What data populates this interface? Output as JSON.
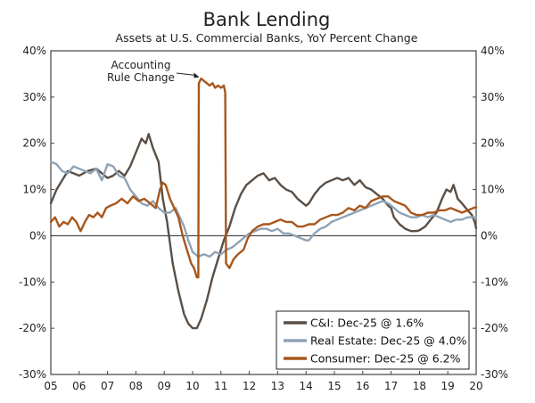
{
  "chart_data": {
    "type": "line",
    "title": "Bank Lending",
    "subtitle": "Assets at U.S. Commercial Banks, YoY Percent Change",
    "xlabel": "",
    "ylabel": "",
    "x_ticks": [
      "05",
      "06",
      "07",
      "08",
      "09",
      "10",
      "11",
      "12",
      "13",
      "14",
      "15",
      "16",
      "17",
      "18",
      "19",
      "20"
    ],
    "y_ticks_left": [
      "40%",
      "30%",
      "20%",
      "10%",
      "0%",
      "-10%",
      "-20%",
      "-30%"
    ],
    "y_ticks_right": [
      "40%",
      "30%",
      "20%",
      "10%",
      "0%",
      "-10%",
      "-20%",
      "-30%"
    ],
    "ylim": [
      -30,
      40
    ],
    "xlim": [
      2005.0,
      2020.0
    ],
    "grid": false,
    "legend_position": "bottom-right",
    "annotation": {
      "lines": [
        "Accounting",
        "Rule Change"
      ],
      "x": 2010.3,
      "y": 34.5
    },
    "colors": {
      "ci": "#5a4f46",
      "real_estate": "#8fa3b5",
      "consumer": "#a8561c"
    },
    "series": [
      {
        "key": "ci",
        "name": "C&I: Dec-25 @ 1.6%",
        "points": [
          [
            2005.0,
            7
          ],
          [
            2005.2,
            10
          ],
          [
            2005.4,
            12
          ],
          [
            2005.6,
            14
          ],
          [
            2005.8,
            13.5
          ],
          [
            2006.0,
            13
          ],
          [
            2006.3,
            14
          ],
          [
            2006.6,
            14.5
          ],
          [
            2006.9,
            13
          ],
          [
            2007.0,
            12.5
          ],
          [
            2007.2,
            13
          ],
          [
            2007.4,
            14
          ],
          [
            2007.6,
            13
          ],
          [
            2007.8,
            15
          ],
          [
            2008.0,
            18
          ],
          [
            2008.2,
            21
          ],
          [
            2008.35,
            20
          ],
          [
            2008.45,
            22
          ],
          [
            2008.6,
            19
          ],
          [
            2008.8,
            16
          ],
          [
            2008.95,
            8
          ],
          [
            2009.1,
            3
          ],
          [
            2009.3,
            -6
          ],
          [
            2009.5,
            -12
          ],
          [
            2009.7,
            -17
          ],
          [
            2009.85,
            -19
          ],
          [
            2010.0,
            -20
          ],
          [
            2010.15,
            -20
          ],
          [
            2010.3,
            -18
          ],
          [
            2010.5,
            -14
          ],
          [
            2010.7,
            -9
          ],
          [
            2010.9,
            -5
          ],
          [
            2011.1,
            -1
          ],
          [
            2011.3,
            2
          ],
          [
            2011.5,
            6
          ],
          [
            2011.7,
            9
          ],
          [
            2011.9,
            11
          ],
          [
            2012.1,
            12
          ],
          [
            2012.3,
            13
          ],
          [
            2012.5,
            13.5
          ],
          [
            2012.7,
            12
          ],
          [
            2012.9,
            12.5
          ],
          [
            2013.1,
            11
          ],
          [
            2013.3,
            10
          ],
          [
            2013.5,
            9.5
          ],
          [
            2013.7,
            8
          ],
          [
            2013.9,
            7
          ],
          [
            2014.0,
            6.5
          ],
          [
            2014.1,
            7
          ],
          [
            2014.3,
            9
          ],
          [
            2014.5,
            10.5
          ],
          [
            2014.7,
            11.5
          ],
          [
            2014.9,
            12
          ],
          [
            2015.1,
            12.5
          ],
          [
            2015.3,
            12
          ],
          [
            2015.5,
            12.5
          ],
          [
            2015.7,
            11
          ],
          [
            2015.9,
            12
          ],
          [
            2016.1,
            10.5
          ],
          [
            2016.3,
            10
          ],
          [
            2016.5,
            9
          ],
          [
            2016.7,
            8
          ],
          [
            2016.9,
            6.5
          ],
          [
            2017.0,
            6
          ],
          [
            2017.1,
            4
          ],
          [
            2017.3,
            2.5
          ],
          [
            2017.5,
            1.5
          ],
          [
            2017.7,
            1
          ],
          [
            2017.9,
            1
          ],
          [
            2018.0,
            1.2
          ],
          [
            2018.2,
            2
          ],
          [
            2018.4,
            3.5
          ],
          [
            2018.6,
            5
          ],
          [
            2018.8,
            8
          ],
          [
            2018.95,
            10
          ],
          [
            2019.1,
            9.5
          ],
          [
            2019.2,
            11
          ],
          [
            2019.35,
            8
          ],
          [
            2019.5,
            7
          ],
          [
            2019.7,
            5.5
          ],
          [
            2019.85,
            4.5
          ],
          [
            2019.95,
            3
          ],
          [
            2020.0,
            1.6
          ]
        ]
      },
      {
        "key": "real_estate",
        "name": "Real Estate: Dec-25 @ 4.0%",
        "points": [
          [
            2005.0,
            16
          ],
          [
            2005.2,
            15.5
          ],
          [
            2005.4,
            14
          ],
          [
            2005.6,
            13.5
          ],
          [
            2005.8,
            15
          ],
          [
            2006.0,
            14.5
          ],
          [
            2006.2,
            14
          ],
          [
            2006.4,
            13.5
          ],
          [
            2006.6,
            14.5
          ],
          [
            2006.8,
            12
          ],
          [
            2007.0,
            15.5
          ],
          [
            2007.2,
            15
          ],
          [
            2007.4,
            13
          ],
          [
            2007.6,
            12.5
          ],
          [
            2007.8,
            10
          ],
          [
            2008.0,
            8.5
          ],
          [
            2008.2,
            7
          ],
          [
            2008.4,
            6.5
          ],
          [
            2008.6,
            7.5
          ],
          [
            2008.8,
            6
          ],
          [
            2009.0,
            5
          ],
          [
            2009.2,
            5
          ],
          [
            2009.4,
            6
          ],
          [
            2009.55,
            4
          ],
          [
            2009.7,
            2
          ],
          [
            2009.85,
            -1
          ],
          [
            2010.0,
            -3.5
          ],
          [
            2010.2,
            -4.5
          ],
          [
            2010.4,
            -4
          ],
          [
            2010.6,
            -4.5
          ],
          [
            2010.8,
            -3.5
          ],
          [
            2011.0,
            -4
          ],
          [
            2011.2,
            -3
          ],
          [
            2011.4,
            -2.5
          ],
          [
            2011.6,
            -1.5
          ],
          [
            2011.8,
            -0.5
          ],
          [
            2012.0,
            0.5
          ],
          [
            2012.2,
            1
          ],
          [
            2012.4,
            1.5
          ],
          [
            2012.6,
            1.5
          ],
          [
            2012.8,
            1
          ],
          [
            2013.0,
            1.5
          ],
          [
            2013.2,
            0.5
          ],
          [
            2013.4,
            0.5
          ],
          [
            2013.6,
            0
          ],
          [
            2013.8,
            -0.5
          ],
          [
            2014.0,
            -1
          ],
          [
            2014.1,
            -1
          ],
          [
            2014.3,
            0.5
          ],
          [
            2014.5,
            1.5
          ],
          [
            2014.7,
            2
          ],
          [
            2014.9,
            3
          ],
          [
            2015.1,
            3.5
          ],
          [
            2015.3,
            4
          ],
          [
            2015.5,
            4.5
          ],
          [
            2015.7,
            5
          ],
          [
            2015.9,
            5.5
          ],
          [
            2016.1,
            6
          ],
          [
            2016.3,
            6.5
          ],
          [
            2016.5,
            7
          ],
          [
            2016.7,
            7.5
          ],
          [
            2016.9,
            7
          ],
          [
            2017.1,
            6
          ],
          [
            2017.3,
            5
          ],
          [
            2017.5,
            4.5
          ],
          [
            2017.7,
            4
          ],
          [
            2017.9,
            4
          ],
          [
            2018.1,
            4.5
          ],
          [
            2018.3,
            4
          ],
          [
            2018.5,
            4.5
          ],
          [
            2018.7,
            4
          ],
          [
            2018.9,
            3.5
          ],
          [
            2019.1,
            3
          ],
          [
            2019.3,
            3.5
          ],
          [
            2019.5,
            3.5
          ],
          [
            2019.7,
            4
          ],
          [
            2019.9,
            4
          ],
          [
            2020.0,
            4
          ]
        ]
      },
      {
        "key": "consumer",
        "name": "Consumer: Dec-25 @ 6.2%",
        "points": [
          [
            2005.0,
            3
          ],
          [
            2005.15,
            4
          ],
          [
            2005.3,
            2
          ],
          [
            2005.45,
            3
          ],
          [
            2005.6,
            2.5
          ],
          [
            2005.75,
            4
          ],
          [
            2005.9,
            3
          ],
          [
            2006.05,
            1
          ],
          [
            2006.2,
            3
          ],
          [
            2006.35,
            4.5
          ],
          [
            2006.5,
            4
          ],
          [
            2006.65,
            5
          ],
          [
            2006.8,
            4
          ],
          [
            2006.95,
            6
          ],
          [
            2007.1,
            6.5
          ],
          [
            2007.3,
            7
          ],
          [
            2007.5,
            8
          ],
          [
            2007.7,
            7
          ],
          [
            2007.9,
            8.5
          ],
          [
            2008.1,
            7.5
          ],
          [
            2008.3,
            8
          ],
          [
            2008.5,
            7
          ],
          [
            2008.7,
            6
          ],
          [
            2008.85,
            10
          ],
          [
            2008.95,
            11.5
          ],
          [
            2009.05,
            11
          ],
          [
            2009.2,
            8
          ],
          [
            2009.35,
            6
          ],
          [
            2009.5,
            4
          ],
          [
            2009.65,
            0
          ],
          [
            2009.8,
            -3
          ],
          [
            2009.95,
            -6
          ],
          [
            2010.05,
            -7
          ],
          [
            2010.15,
            -9
          ],
          [
            2010.2,
            -9
          ],
          [
            2010.22,
            33
          ],
          [
            2010.3,
            34
          ],
          [
            2010.4,
            33.5
          ],
          [
            2010.5,
            33
          ],
          [
            2010.6,
            32.5
          ],
          [
            2010.7,
            33
          ],
          [
            2010.8,
            32
          ],
          [
            2010.9,
            32.5
          ],
          [
            2011.0,
            32
          ],
          [
            2011.1,
            32.5
          ],
          [
            2011.15,
            31
          ],
          [
            2011.18,
            -6
          ],
          [
            2011.3,
            -7
          ],
          [
            2011.45,
            -5
          ],
          [
            2011.6,
            -4
          ],
          [
            2011.8,
            -3
          ],
          [
            2011.95,
            -0.5
          ],
          [
            2012.1,
            1
          ],
          [
            2012.3,
            2
          ],
          [
            2012.5,
            2.5
          ],
          [
            2012.7,
            2.5
          ],
          [
            2012.9,
            3
          ],
          [
            2013.1,
            3.5
          ],
          [
            2013.3,
            3
          ],
          [
            2013.5,
            3
          ],
          [
            2013.7,
            2
          ],
          [
            2013.9,
            2
          ],
          [
            2014.1,
            2.5
          ],
          [
            2014.3,
            2.5
          ],
          [
            2014.5,
            3.5
          ],
          [
            2014.7,
            4
          ],
          [
            2014.9,
            4.5
          ],
          [
            2015.1,
            4.5
          ],
          [
            2015.3,
            5
          ],
          [
            2015.5,
            6
          ],
          [
            2015.7,
            5.5
          ],
          [
            2015.9,
            6.5
          ],
          [
            2016.1,
            6
          ],
          [
            2016.3,
            7.5
          ],
          [
            2016.5,
            8
          ],
          [
            2016.7,
            8.5
          ],
          [
            2016.9,
            8.5
          ],
          [
            2017.1,
            7.5
          ],
          [
            2017.3,
            7
          ],
          [
            2017.5,
            6.5
          ],
          [
            2017.7,
            5
          ],
          [
            2017.9,
            4.5
          ],
          [
            2018.1,
            4.5
          ],
          [
            2018.3,
            5
          ],
          [
            2018.5,
            5
          ],
          [
            2018.7,
            5.5
          ],
          [
            2018.9,
            5.5
          ],
          [
            2019.1,
            6
          ],
          [
            2019.3,
            5.5
          ],
          [
            2019.5,
            5
          ],
          [
            2019.7,
            5.5
          ],
          [
            2019.9,
            6
          ],
          [
            2020.0,
            6.2
          ]
        ]
      }
    ]
  }
}
